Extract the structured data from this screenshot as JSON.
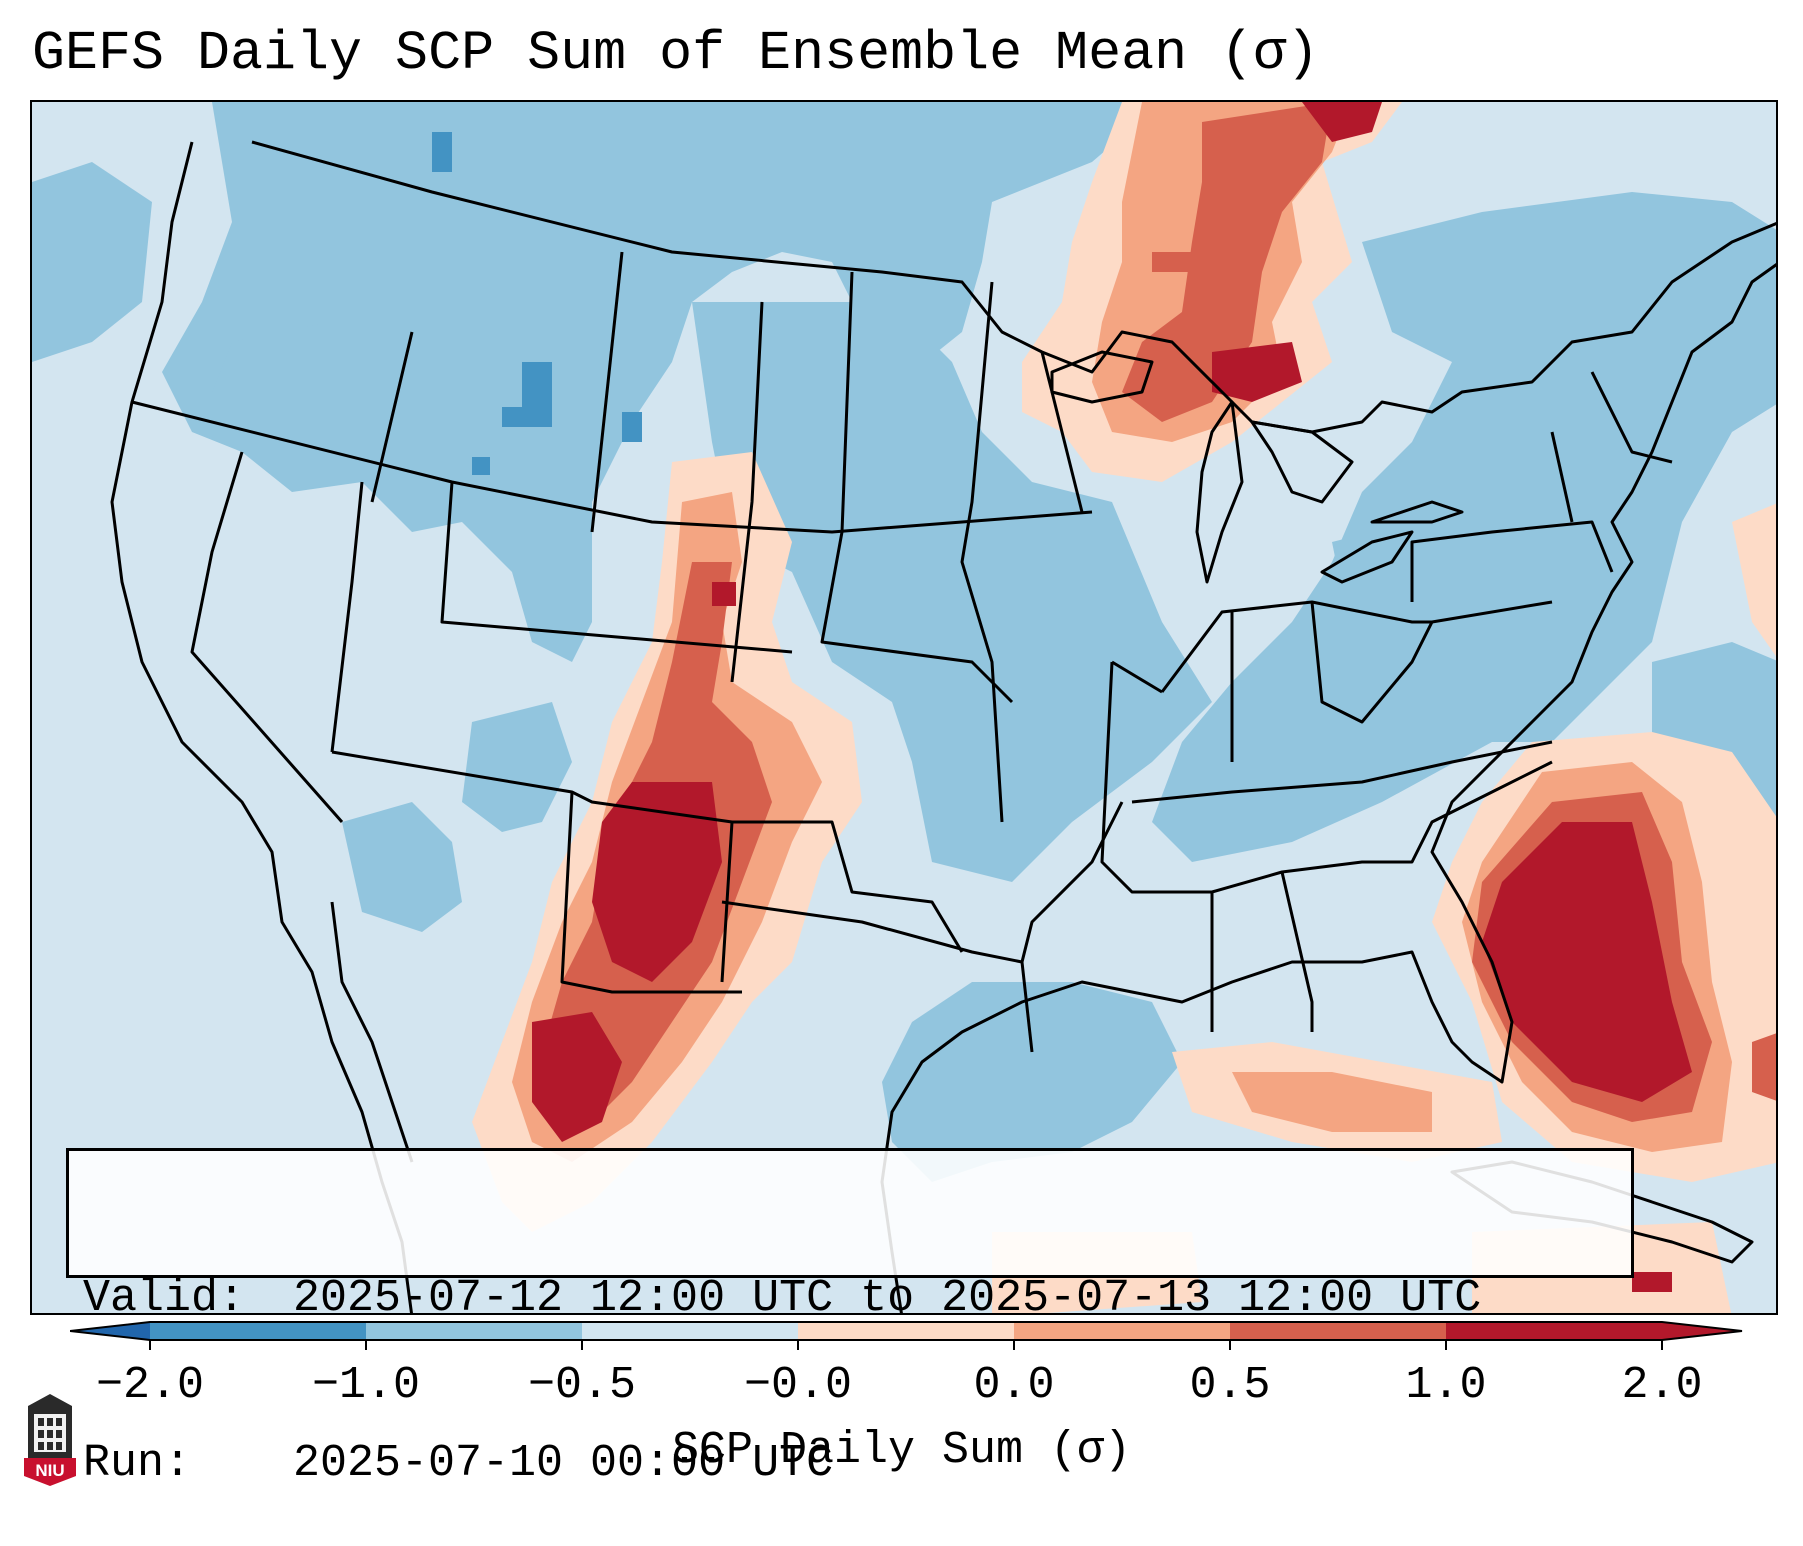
{
  "title": "GEFS Daily SCP Sum of Ensemble Mean (σ)",
  "map": {
    "region": "Continental United States",
    "field": "SCP Daily Sum (σ)",
    "ocean_color": "#d3e5f0"
  },
  "info_box": {
    "valid_label": "Valid:",
    "valid_value": "2025-07-12 12:00 UTC to 2025-07-13 12:00 UTC",
    "run_label": "Run:",
    "run_value": "2025-07-10 00:00 UTC"
  },
  "colorbar": {
    "label": "SCP Daily Sum (σ)",
    "ticks": [
      "−2.0",
      "−1.0",
      "−0.5",
      "−0.0",
      "0.0",
      "0.5",
      "1.0",
      "2.0"
    ],
    "colors": [
      "#4393c3",
      "#92c5de",
      "#d1e5f0",
      "#fddbc7",
      "#f4a582",
      "#d6604d",
      "#b2182b"
    ],
    "extend_low_color": "#2166ac",
    "extend_high_color": "#b2182b"
  },
  "logo": {
    "text": "NIU",
    "icon": "university-tower-icon",
    "color": "#c8102e"
  }
}
